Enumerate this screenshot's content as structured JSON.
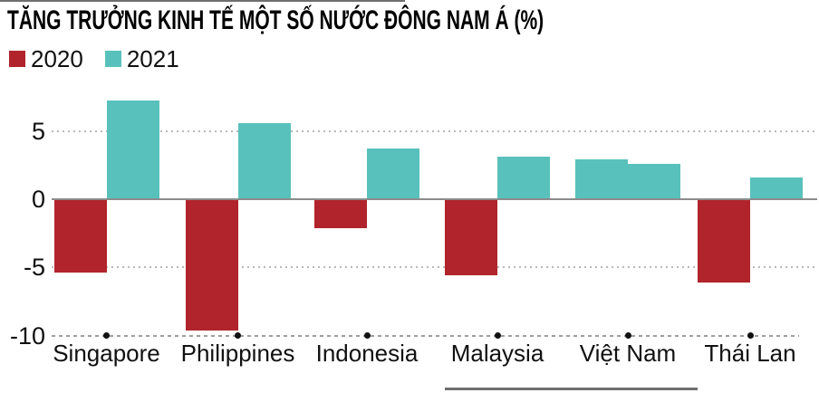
{
  "title": "TĂNG TRƯỞNG KINH TẾ MỘT SỐ NƯỚC ĐÔNG NAM Á (%)",
  "legend": [
    {
      "label": "2020",
      "color": "#b1242b"
    },
    {
      "label": "2021",
      "color": "#59c1bb"
    }
  ],
  "chart_data": {
    "type": "bar",
    "title": "TĂNG TRƯỞNG KINH TẾ MỘT SỐ NƯỚC ĐÔNG NAM Á (%)",
    "categories": [
      "Singapore",
      "Philippines",
      "Indonesia",
      "Malaysia",
      "Việt Nam",
      "Thái Lan"
    ],
    "series": [
      {
        "name": "2020",
        "values": [
          -5.4,
          -9.6,
          -2.1,
          -5.6,
          2.9,
          -6.1
        ]
      },
      {
        "name": "2021",
        "values": [
          7.2,
          5.6,
          3.7,
          3.1,
          2.6,
          1.6
        ]
      }
    ],
    "ylabel": "%",
    "ylim": [
      -10,
      8
    ],
    "yticks": [
      {
        "label": "5",
        "value": 5
      },
      {
        "label": "0",
        "value": 0
      },
      {
        "label": "-5",
        "value": -5
      },
      {
        "label": "-10",
        "value": -10
      }
    ],
    "legend_position": "top-left",
    "grid": "dotted at 5 and -5, solid at 0, dashed baseline at -10 with dot markers",
    "color_note": "negative bars red, positive bars teal (Việt Nam 2020 bar drawn teal)"
  },
  "colors": {
    "positive_bar": "#59c1bb",
    "negative_bar": "#b1242b",
    "zero_line": "#8c8c8c",
    "grid_dotted": "#b9b9b9",
    "baseline_dashed": "#9e9e9e",
    "dot_marker": "#111111",
    "text": "#111111",
    "border_line": "#6f6f6f"
  }
}
